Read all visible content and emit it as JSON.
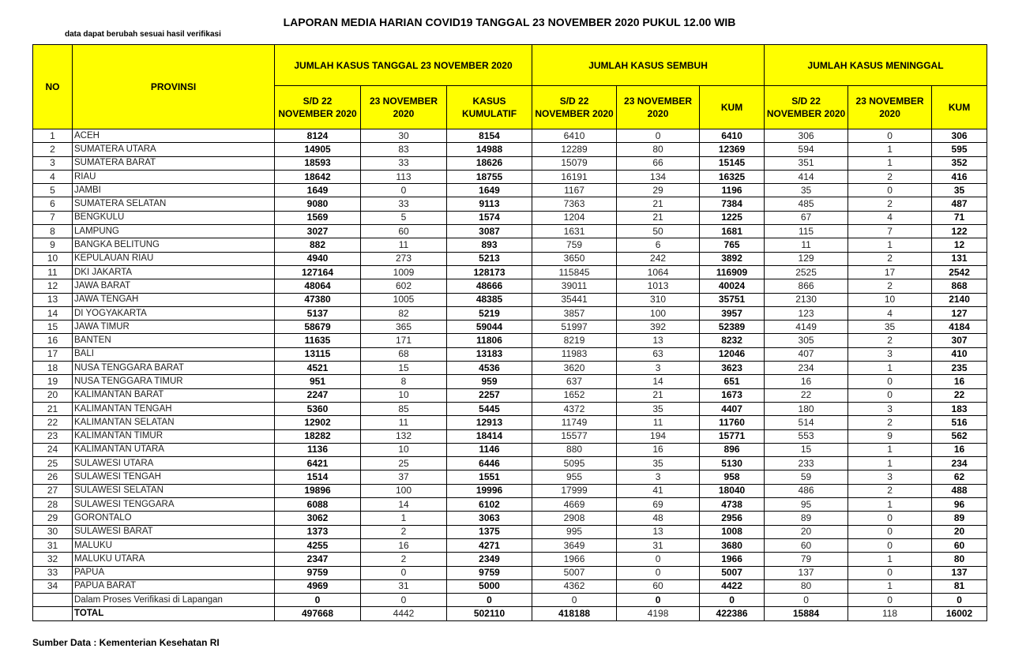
{
  "header": {
    "title": "LAPORAN MEDIA HARIAN COVID19 TANGGAL 23 NOVEMBER 2020 PUKUL 12.00 WIB",
    "note": "data dapat berubah sesuai hasil verifikasi"
  },
  "table": {
    "columns": {
      "no": "NO",
      "provinsi": "PROVINSI",
      "groups": [
        "JUMLAH KASUS TANGGAL 23 NOVEMBER 2020",
        "JUMLAH KASUS SEMBUH",
        "JUMLAH KASUS MENINGGAL"
      ],
      "sub": [
        "S/D 22 NOVEMBER 2020",
        "23 NOVEMBER 2020",
        "KASUS KUMULATIF",
        "S/D 22 NOVEMBER 2020",
        "23 NOVEMBER 2020",
        "KUM",
        "S/D 22 NOVEMBER 2020",
        "23 NOVEMBER 2020",
        "KUM"
      ]
    },
    "rows": [
      [
        1,
        "ACEH",
        8124,
        30,
        8154,
        6410,
        0,
        6410,
        306,
        0,
        306
      ],
      [
        2,
        "SUMATERA UTARA",
        14905,
        83,
        14988,
        12289,
        80,
        12369,
        594,
        1,
        595
      ],
      [
        3,
        "SUMATERA BARAT",
        18593,
        33,
        18626,
        15079,
        66,
        15145,
        351,
        1,
        352
      ],
      [
        4,
        "RIAU",
        18642,
        113,
        18755,
        16191,
        134,
        16325,
        414,
        2,
        416
      ],
      [
        5,
        "JAMBI",
        1649,
        0,
        1649,
        1167,
        29,
        1196,
        35,
        0,
        35
      ],
      [
        6,
        "SUMATERA SELATAN",
        9080,
        33,
        9113,
        7363,
        21,
        7384,
        485,
        2,
        487
      ],
      [
        7,
        "BENGKULU",
        1569,
        5,
        1574,
        1204,
        21,
        1225,
        67,
        4,
        71
      ],
      [
        8,
        "LAMPUNG",
        3027,
        60,
        3087,
        1631,
        50,
        1681,
        115,
        7,
        122
      ],
      [
        9,
        "BANGKA BELITUNG",
        882,
        11,
        893,
        759,
        6,
        765,
        11,
        1,
        12
      ],
      [
        10,
        "KEPULAUAN RIAU",
        4940,
        273,
        5213,
        3650,
        242,
        3892,
        129,
        2,
        131
      ],
      [
        11,
        "DKI JAKARTA",
        127164,
        1009,
        128173,
        115845,
        1064,
        116909,
        2525,
        17,
        2542
      ],
      [
        12,
        "JAWA BARAT",
        48064,
        602,
        48666,
        39011,
        1013,
        40024,
        866,
        2,
        868
      ],
      [
        13,
        "JAWA TENGAH",
        47380,
        1005,
        48385,
        35441,
        310,
        35751,
        2130,
        10,
        2140
      ],
      [
        14,
        "DI YOGYAKARTA",
        5137,
        82,
        5219,
        3857,
        100,
        3957,
        123,
        4,
        127
      ],
      [
        15,
        "JAWA TIMUR",
        58679,
        365,
        59044,
        51997,
        392,
        52389,
        4149,
        35,
        4184
      ],
      [
        16,
        "BANTEN",
        11635,
        171,
        11806,
        8219,
        13,
        8232,
        305,
        2,
        307
      ],
      [
        17,
        "BALI",
        13115,
        68,
        13183,
        11983,
        63,
        12046,
        407,
        3,
        410
      ],
      [
        18,
        "NUSA TENGGARA BARAT",
        4521,
        15,
        4536,
        3620,
        3,
        3623,
        234,
        1,
        235
      ],
      [
        19,
        "NUSA TENGGARA TIMUR",
        951,
        8,
        959,
        637,
        14,
        651,
        16,
        0,
        16
      ],
      [
        20,
        "KALIMANTAN BARAT",
        2247,
        10,
        2257,
        1652,
        21,
        1673,
        22,
        0,
        22
      ],
      [
        21,
        "KALIMANTAN TENGAH",
        5360,
        85,
        5445,
        4372,
        35,
        4407,
        180,
        3,
        183
      ],
      [
        22,
        "KALIMANTAN SELATAN",
        12902,
        11,
        12913,
        11749,
        11,
        11760,
        514,
        2,
        516
      ],
      [
        23,
        "KALIMANTAN TIMUR",
        18282,
        132,
        18414,
        15577,
        194,
        15771,
        553,
        9,
        562
      ],
      [
        24,
        "KALIMANTAN UTARA",
        1136,
        10,
        1146,
        880,
        16,
        896,
        15,
        1,
        16
      ],
      [
        25,
        "SULAWESI UTARA",
        6421,
        25,
        6446,
        5095,
        35,
        5130,
        233,
        1,
        234
      ],
      [
        26,
        "SULAWESI TENGAH",
        1514,
        37,
        1551,
        955,
        3,
        958,
        59,
        3,
        62
      ],
      [
        27,
        "SULAWESI SELATAN",
        19896,
        100,
        19996,
        17999,
        41,
        18040,
        486,
        2,
        488
      ],
      [
        28,
        "SULAWESI TENGGARA",
        6088,
        14,
        6102,
        4669,
        69,
        4738,
        95,
        1,
        96
      ],
      [
        29,
        "GORONTALO",
        3062,
        1,
        3063,
        2908,
        48,
        2956,
        89,
        0,
        89
      ],
      [
        30,
        "SULAWESI BARAT",
        1373,
        2,
        1375,
        995,
        13,
        1008,
        20,
        0,
        20
      ],
      [
        31,
        "MALUKU",
        4255,
        16,
        4271,
        3649,
        31,
        3680,
        60,
        0,
        60
      ],
      [
        32,
        "MALUKU UTARA",
        2347,
        2,
        2349,
        1966,
        0,
        1966,
        79,
        1,
        80
      ],
      [
        33,
        "PAPUA",
        9759,
        0,
        9759,
        5007,
        0,
        5007,
        137,
        0,
        137
      ],
      [
        34,
        "PAPUA BARAT",
        4969,
        31,
        5000,
        4362,
        60,
        4422,
        80,
        1,
        81
      ]
    ],
    "pending": [
      "Dalam Proses Verifikasi di Lapangan",
      0,
      0,
      0,
      0,
      0,
      0,
      0,
      0,
      0
    ],
    "total": [
      "TOTAL",
      497668,
      4442,
      502110,
      418188,
      4198,
      422386,
      15884,
      118,
      16002
    ]
  },
  "footer": "Sumber Data : Kementerian Kesehatan RI"
}
